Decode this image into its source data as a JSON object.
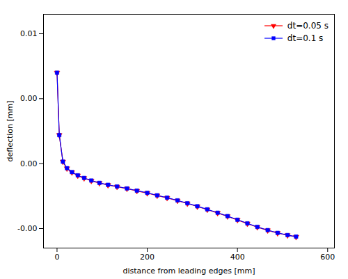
{
  "chart_data": {
    "type": "line",
    "xlabel": "distance from leading edges [mm]",
    "ylabel": "deflection [mm]",
    "x": [
      0,
      5,
      13,
      22,
      33,
      46,
      60,
      76,
      94,
      113,
      133,
      155,
      177,
      200,
      222,
      244,
      267,
      289,
      311,
      333,
      356,
      378,
      400,
      422,
      444,
      467,
      489,
      511,
      530
    ],
    "series": [
      {
        "name": "dt=0.05 s",
        "color": "#FF0000",
        "marker": "triangle-down",
        "values": [
          0.007,
          0.0022,
          0.00015,
          -0.00037,
          -0.00067,
          -0.00092,
          -0.00112,
          -0.00132,
          -0.0015,
          -0.00165,
          -0.00178,
          -0.00193,
          -0.0021,
          -0.00227,
          -0.00246,
          -0.00264,
          -0.00285,
          -0.00307,
          -0.0033,
          -0.00354,
          -0.0038,
          -0.00406,
          -0.00434,
          -0.00462,
          -0.00489,
          -0.00514,
          -0.00535,
          -0.00552,
          -0.00564
        ]
      },
      {
        "name": "dt=0.1 s",
        "color": "#0000FF",
        "marker": "square",
        "values": [
          0.007,
          0.0022,
          0.00015,
          -0.00035,
          -0.00065,
          -0.0009,
          -0.0011,
          -0.0013,
          -0.00148,
          -0.00163,
          -0.00176,
          -0.00191,
          -0.00208,
          -0.00225,
          -0.00244,
          -0.00262,
          -0.00283,
          -0.00305,
          -0.00328,
          -0.00352,
          -0.00378,
          -0.00404,
          -0.00432,
          -0.0046,
          -0.00487,
          -0.00512,
          -0.00533,
          -0.0055,
          -0.00562
        ]
      }
    ],
    "xlim": [
      -30,
      615
    ],
    "ylim": [
      -0.0065,
      0.0115
    ],
    "xticks": [
      0,
      200,
      400,
      600
    ],
    "yticks": [
      0.01,
      {
        "value": 0.005,
        "label": "0.00"
      },
      {
        "value": 0.0,
        "label": "0.00"
      },
      {
        "value": -0.005,
        "label": "-0.00"
      }
    ],
    "legend": "upper right",
    "grid": false
  }
}
